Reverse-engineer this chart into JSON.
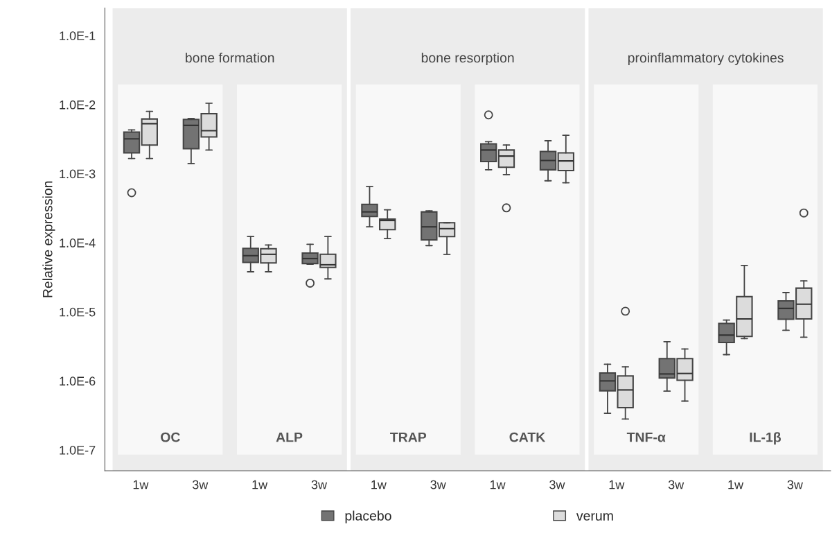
{
  "chart_data": {
    "type": "box",
    "ylabel": "Relative expression",
    "categories": [
      "1w",
      "3w",
      "1w",
      "3w",
      "1w",
      "3w",
      "1w",
      "3w",
      "1w",
      "3w",
      "1w",
      "3w"
    ],
    "series": [
      {
        "name": "placebo",
        "color": "#737373",
        "boxes": [
          {
            "low": 0.00166,
            "q1": 0.002,
            "median": 0.0032,
            "q3": 0.004,
            "high": 0.0043,
            "outliers": [
              0.00053
            ]
          },
          {
            "low": 0.0014,
            "q1": 0.0023,
            "median": 0.005,
            "q3": 0.0061,
            "high": 0.0063
          },
          {
            "low": 3.8e-05,
            "q1": 5.2e-05,
            "median": 6.5e-05,
            "q3": 8.3e-05,
            "high": 0.000123
          },
          {
            "low": 4.9e-05,
            "q1": 5e-05,
            "median": 5.9e-05,
            "q3": 7.1e-05,
            "high": 9.5e-05,
            "outliers": [
              2.6e-05
            ]
          },
          {
            "low": 0.00017,
            "q1": 0.00024,
            "median": 0.00028,
            "q3": 0.00036,
            "high": 0.00065
          },
          {
            "low": 9.1e-05,
            "q1": 0.00011,
            "median": 0.00017,
            "q3": 0.00028,
            "high": 0.00029
          },
          {
            "low": 0.00114,
            "q1": 0.0015,
            "median": 0.0022,
            "q3": 0.0027,
            "high": 0.0029,
            "outliers": [
              0.0071
            ]
          },
          {
            "low": 0.00079,
            "q1": 0.00114,
            "median": 0.00155,
            "q3": 0.0021,
            "high": 0.003
          },
          {
            "low": 3.4e-07,
            "q1": 7.2e-07,
            "median": 1e-06,
            "q3": 1.3e-06,
            "high": 1.74e-06
          },
          {
            "low": 7.1e-07,
            "q1": 1.1e-06,
            "median": 1.26e-06,
            "q3": 2.1e-06,
            "high": 3.7e-06
          },
          {
            "low": 2.4e-06,
            "q1": 3.6e-06,
            "median": 4.6e-06,
            "q3": 6.8e-06,
            "high": 7.6e-06
          },
          {
            "low": 5.4e-06,
            "q1": 7.8e-06,
            "median": 1.12e-05,
            "q3": 1.44e-05,
            "high": 1.9e-05
          }
        ]
      },
      {
        "name": "verum",
        "color": "#dcdcdc",
        "boxes": [
          {
            "low": 0.00166,
            "q1": 0.0026,
            "median": 0.0053,
            "q3": 0.0062,
            "high": 0.008
          },
          {
            "low": 0.0022,
            "q1": 0.0034,
            "median": 0.0042,
            "q3": 0.0074,
            "high": 0.0105
          },
          {
            "low": 3.8e-05,
            "q1": 5.1e-05,
            "median": 6.8e-05,
            "q3": 8.2e-05,
            "high": 9.3e-05
          },
          {
            "low": 3e-05,
            "q1": 4.4e-05,
            "median": 4.8e-05,
            "q3": 6.8e-05,
            "high": 0.000123
          },
          {
            "low": 0.000115,
            "q1": 0.000155,
            "median": 0.00021,
            "q3": 0.00022,
            "high": 0.0003
          },
          {
            "low": 6.8e-05,
            "q1": 0.000123,
            "median": 0.00016,
            "q3": 0.000195,
            "high": 0.000195
          },
          {
            "low": 0.00097,
            "q1": 0.00124,
            "median": 0.0018,
            "q3": 0.0022,
            "high": 0.0026,
            "outliers": [
              0.00032
            ]
          },
          {
            "low": 0.00074,
            "q1": 0.00111,
            "median": 0.00153,
            "q3": 0.002,
            "high": 0.0036
          },
          {
            "low": 2.8e-07,
            "q1": 4.1e-07,
            "median": 7.4e-07,
            "q3": 1.18e-06,
            "high": 1.6e-06,
            "outliers": [
              1.02e-05
            ]
          },
          {
            "low": 5.1e-07,
            "q1": 1.02e-06,
            "median": 1.28e-06,
            "q3": 2.1e-06,
            "high": 2.9e-06
          },
          {
            "low": 4.1e-06,
            "q1": 4.4e-06,
            "median": 7.9e-06,
            "q3": 1.66e-05,
            "high": 4.7e-05
          },
          {
            "low": 4.3e-06,
            "q1": 7.9e-06,
            "median": 1.29e-05,
            "q3": 2.2e-05,
            "high": 2.8e-05,
            "outliers": [
              0.00027
            ]
          }
        ]
      }
    ],
    "log": true,
    "ylim": [
      5e-08,
      0.25
    ],
    "yticks": [
      {
        "value": 1e-07,
        "label": "1.0E-7"
      },
      {
        "value": 1e-06,
        "label": "1.0E-6"
      },
      {
        "value": 1e-05,
        "label": "1.0E-5"
      },
      {
        "value": 0.0001,
        "label": "1.0E-4"
      },
      {
        "value": 0.001,
        "label": "1.0E-3"
      },
      {
        "value": 0.01,
        "label": "1.0E-2"
      },
      {
        "value": 0.1,
        "label": "1.0E-1"
      }
    ],
    "annotations": [
      "bone formation",
      "bone resorption",
      "proinflammatory cytokines",
      "OC",
      "ALP",
      "TRAP",
      "CATK",
      "TNF-α",
      "IL-1β"
    ],
    "grid": false,
    "legend": "bottom"
  }
}
